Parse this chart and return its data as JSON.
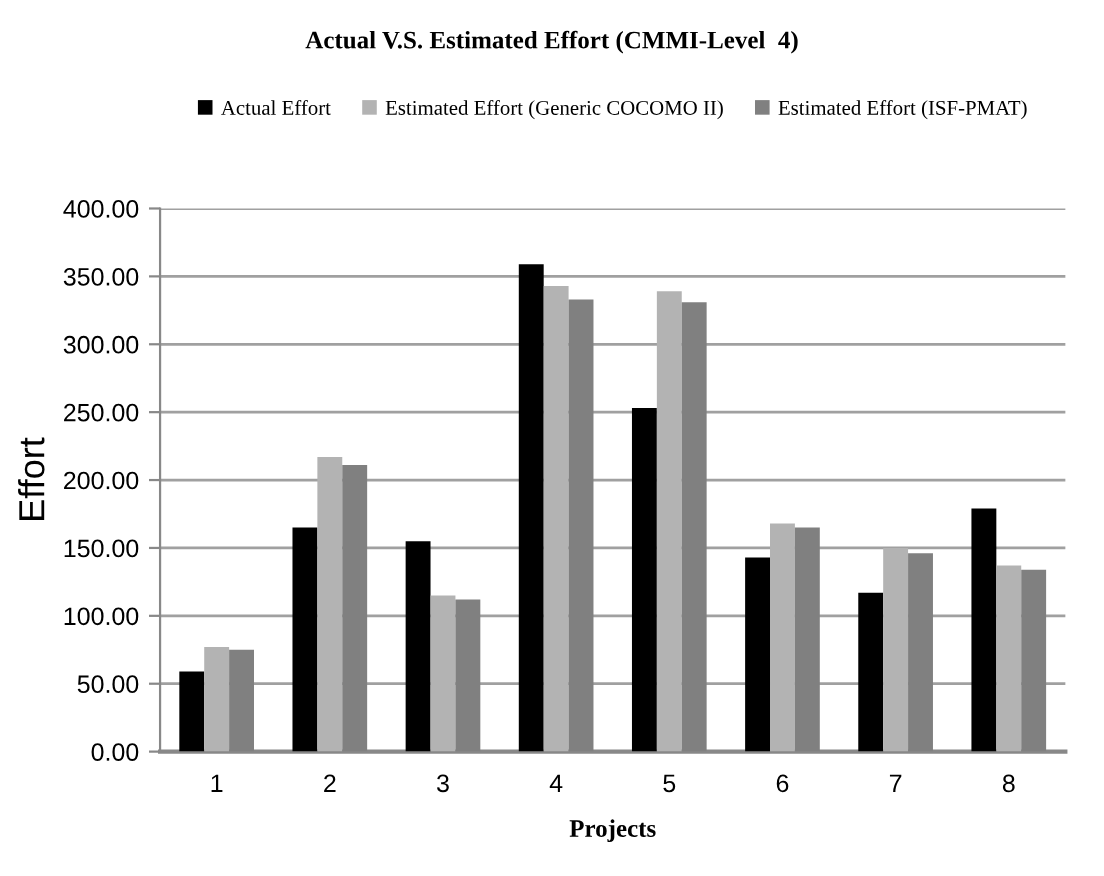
{
  "chart_data": {
    "type": "bar",
    "title": "Actual V.S. Estimated Effort (CMMI-Level  4)",
    "xlabel": "Projects",
    "ylabel": "Effort",
    "categories": [
      "1",
      "2",
      "3",
      "4",
      "5",
      "6",
      "7",
      "8"
    ],
    "series": [
      {
        "name": "Actual Effort",
        "color": "#000000",
        "values": [
          59,
          165,
          155,
          359,
          253,
          143,
          117,
          179
        ]
      },
      {
        "name": "Estimated Effort (Generic COCOMO II)",
        "color": "#b3b3b3",
        "values": [
          77,
          217,
          115,
          343,
          339,
          168,
          150,
          137
        ]
      },
      {
        "name": "Estimated Effort (ISF-PMAT)",
        "color": "#808080",
        "values": [
          75,
          211,
          112,
          333,
          331,
          165,
          146,
          134
        ]
      }
    ],
    "ylim": [
      0,
      400
    ],
    "yticks": [
      {
        "value": 0,
        "label": "0.00"
      },
      {
        "value": 50,
        "label": "50.00"
      },
      {
        "value": 100,
        "label": "100.00"
      },
      {
        "value": 150,
        "label": "150.00"
      },
      {
        "value": 200,
        "label": "200.00"
      },
      {
        "value": 250,
        "label": "250.00"
      },
      {
        "value": 300,
        "label": "300.00"
      },
      {
        "value": 350,
        "label": "350.00"
      },
      {
        "value": 400,
        "label": "400.00"
      }
    ],
    "grid": "y",
    "legend": "top"
  }
}
